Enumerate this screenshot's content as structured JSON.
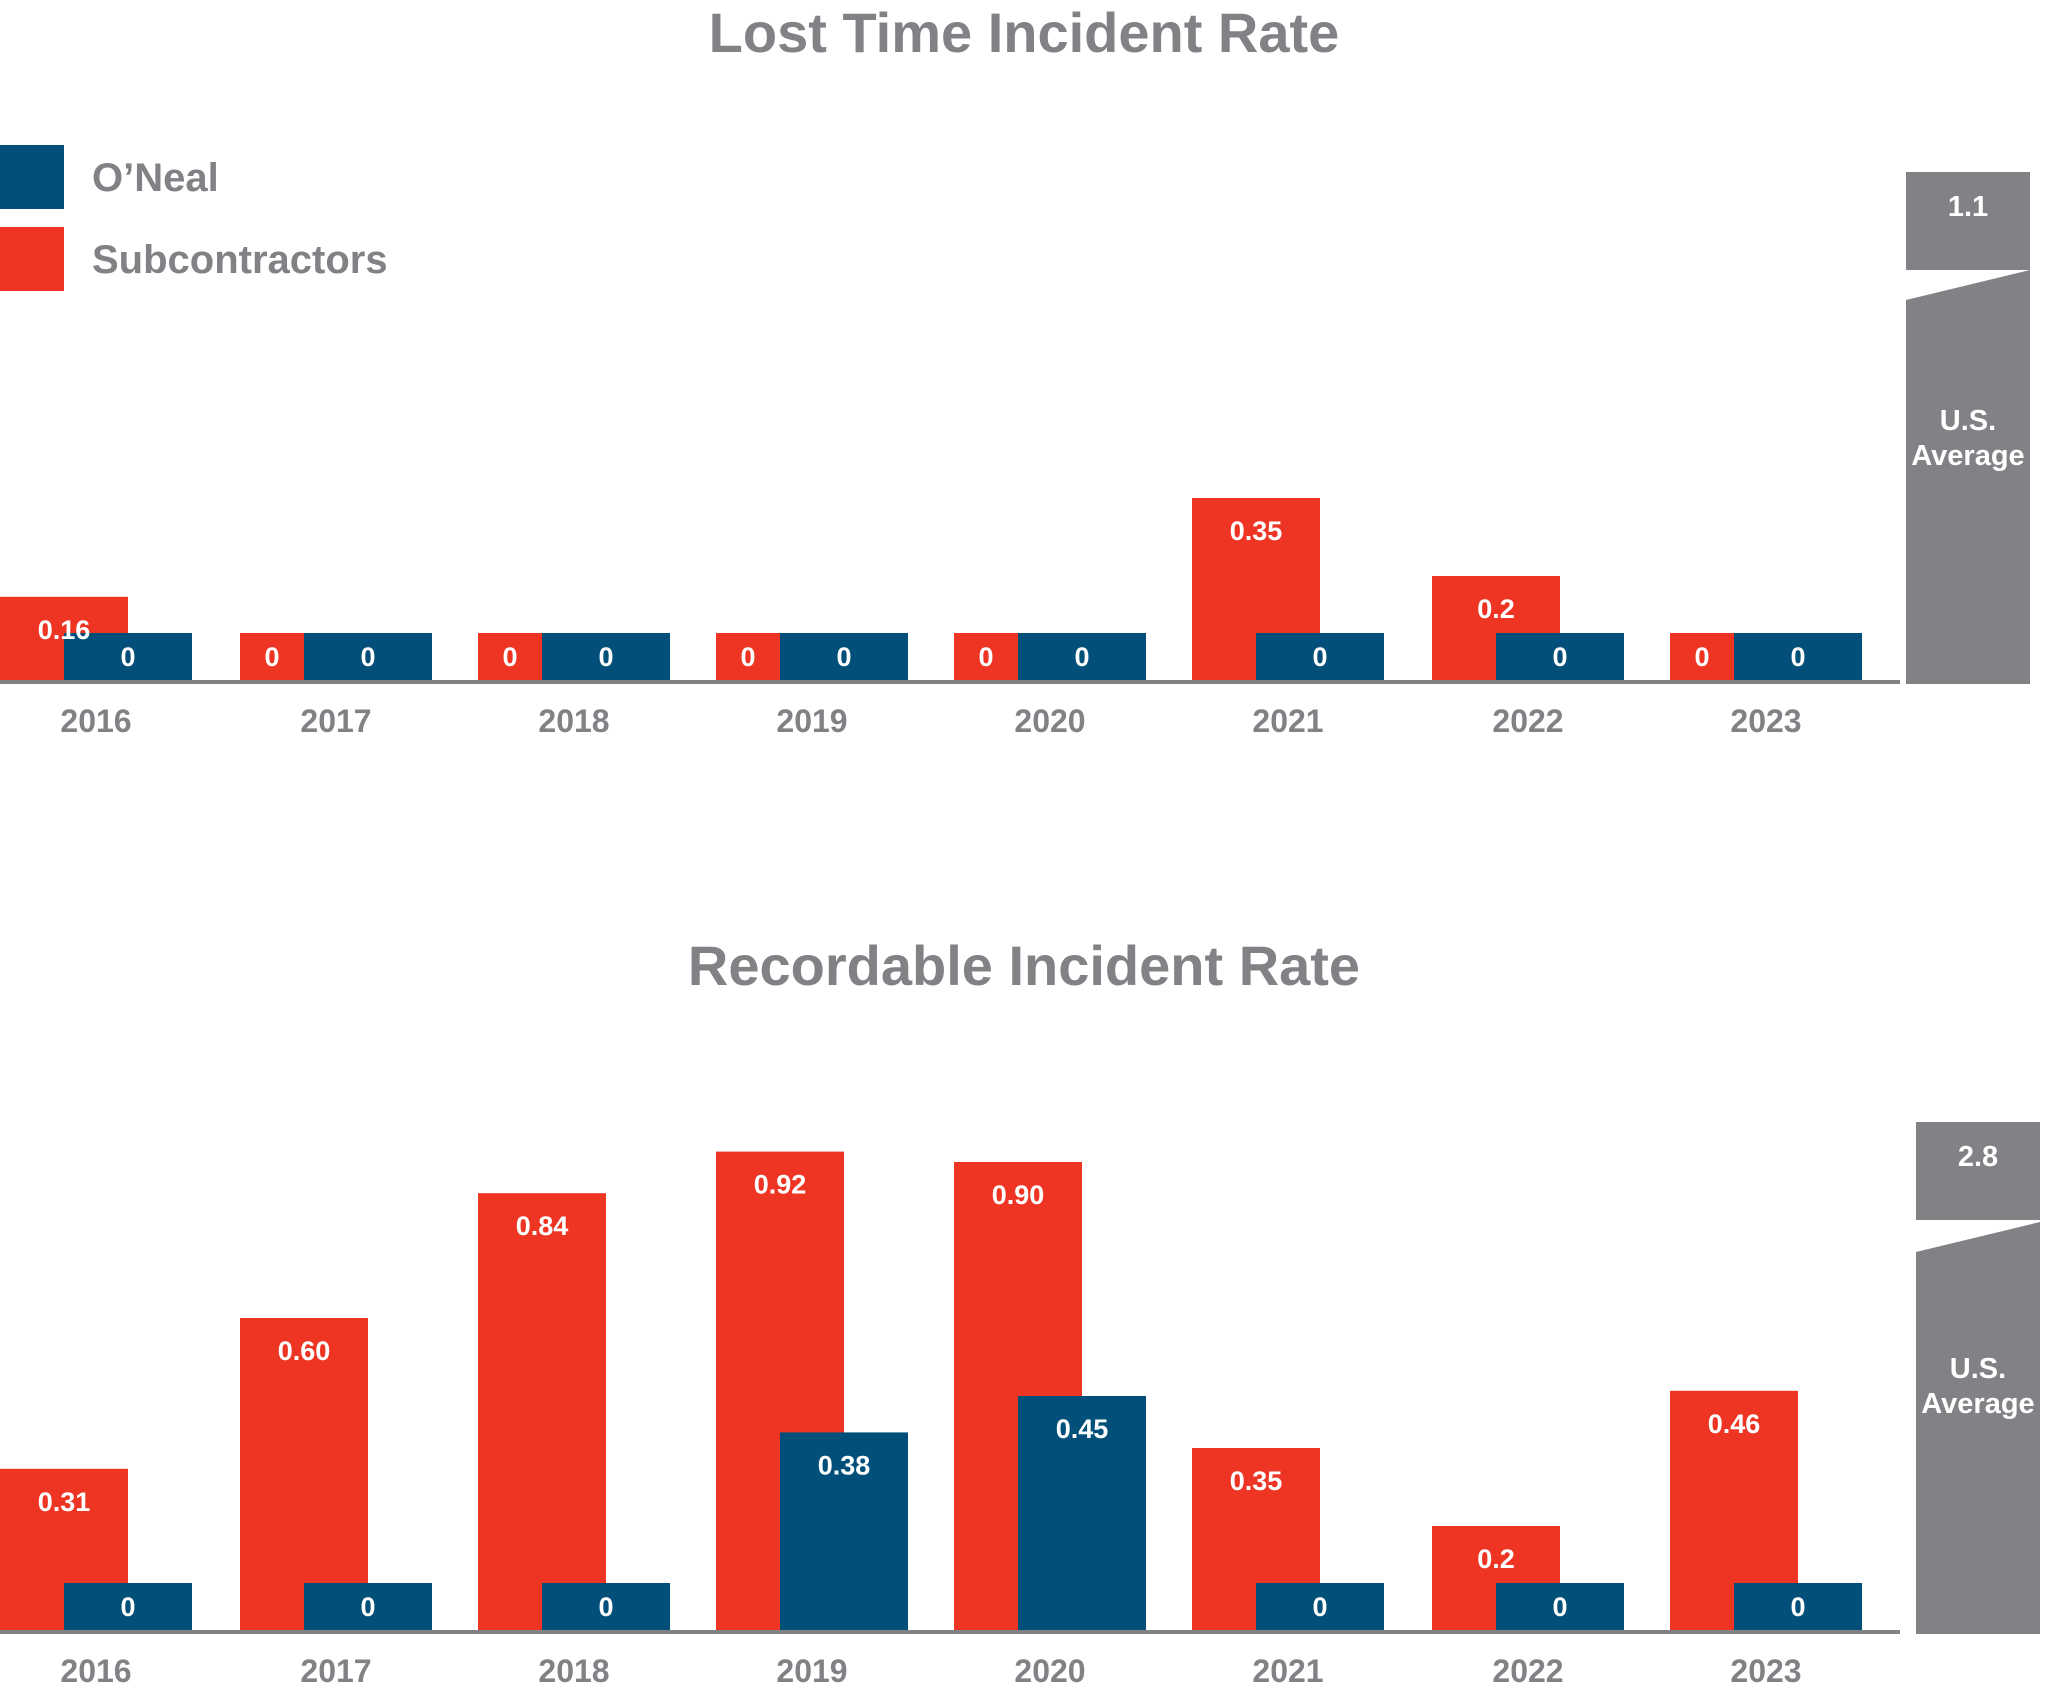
{
  "chart_data": [
    {
      "type": "bar",
      "title": "Lost Time Incident Rate",
      "categories": [
        "2016",
        "2017",
        "2018",
        "2019",
        "2020",
        "2021",
        "2022",
        "2023"
      ],
      "series": [
        {
          "name": "Subcontractors",
          "color": "#ee3524",
          "values": [
            0.16,
            0,
            0,
            0,
            0,
            0.35,
            0.2,
            0
          ],
          "labels": [
            "0.16",
            "0",
            "0",
            "0",
            "0",
            "0.35",
            "0.2",
            "0"
          ]
        },
        {
          "name": "O’Neal",
          "color": "#02507a",
          "values": [
            0,
            0,
            0,
            0,
            0,
            0,
            0,
            0
          ],
          "labels": [
            "0",
            "0",
            "0",
            "0",
            "0",
            "0",
            "0",
            "0"
          ]
        }
      ],
      "us_average": {
        "value": 1.1,
        "value_label": "1.1",
        "label_line1": "U.S.",
        "label_line2": "Average",
        "color": "#808285",
        "axis_break": true
      },
      "legend": {
        "position": "top-left"
      }
    },
    {
      "type": "bar",
      "title": "Recordable Incident Rate",
      "categories": [
        "2016",
        "2017",
        "2018",
        "2019",
        "2020",
        "2021",
        "2022",
        "2023"
      ],
      "series": [
        {
          "name": "Subcontractors",
          "color": "#ee3524",
          "values": [
            0.31,
            0.6,
            0.84,
            0.92,
            0.9,
            0.35,
            0.2,
            0.46
          ],
          "labels": [
            "0.31",
            "0.60",
            "0.84",
            "0.92",
            "0.90",
            "0.35",
            "0.2",
            "0.46"
          ]
        },
        {
          "name": "O’Neal",
          "color": "#02507a",
          "values": [
            0,
            0,
            0,
            0.38,
            0.45,
            0,
            0,
            0
          ],
          "labels": [
            "0",
            "0",
            "0",
            "0.38",
            "0.45",
            "0",
            "0",
            "0"
          ]
        }
      ],
      "us_average": {
        "value": 2.8,
        "value_label": "2.8",
        "label_line1": "U.S.",
        "label_line2": "Average",
        "color": "#808285",
        "axis_break": true
      }
    }
  ],
  "legend": [
    {
      "label": "O’Neal",
      "color": "#02507a"
    },
    {
      "label": "Subcontractors",
      "color": "#ee3524"
    }
  ]
}
